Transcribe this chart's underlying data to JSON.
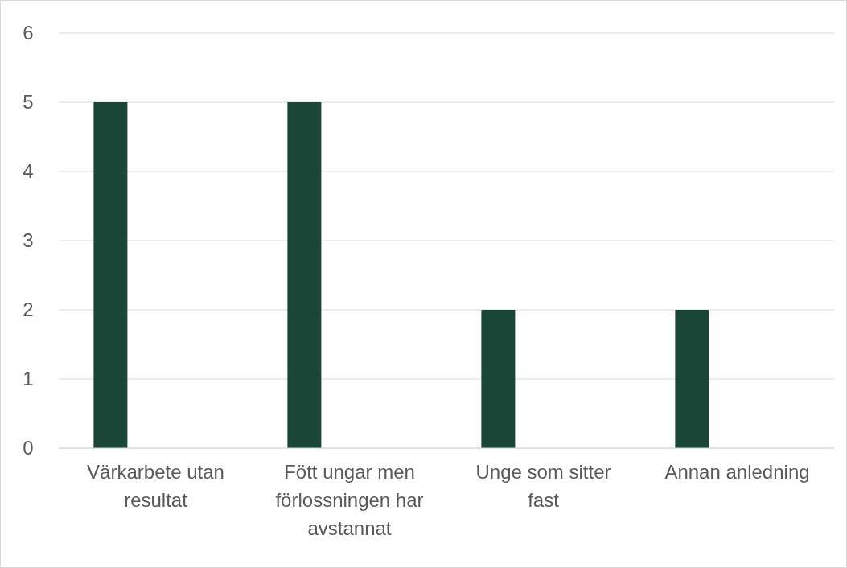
{
  "chart_data": {
    "type": "bar",
    "categories": [
      "Värkarbete utan resultat",
      "Fött ungar men förlossningen har avstannat",
      "Unge som sitter fast",
      "Annan anledning"
    ],
    "values": [
      5,
      5,
      2,
      2
    ],
    "color": "#1a4637",
    "ylim": [
      0,
      6
    ],
    "yticks": [
      0,
      1,
      2,
      3,
      4,
      5,
      6
    ],
    "grid": "y"
  }
}
